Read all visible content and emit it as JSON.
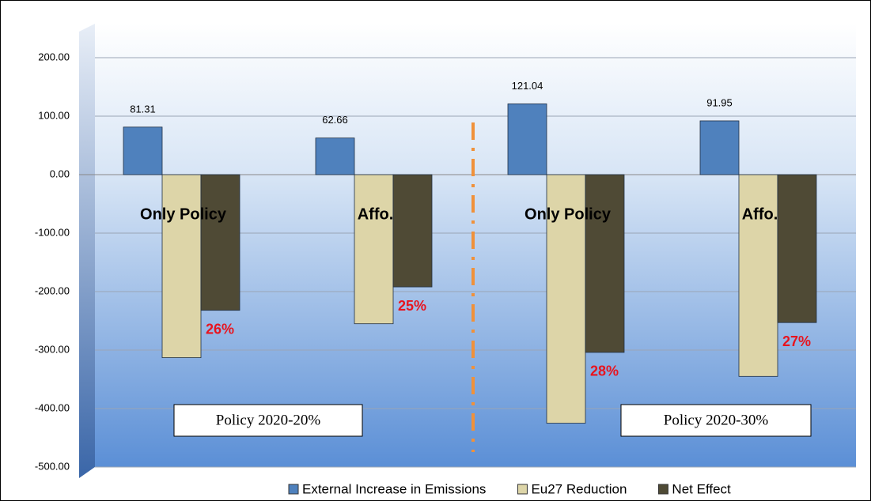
{
  "chart_data": {
    "type": "bar",
    "categories": [
      "Only Policy",
      "Affo.",
      "Only Policy",
      "Affo."
    ],
    "series": [
      {
        "name": "External Increase in Emissions",
        "color": "#4f81bd",
        "values": [
          81.31,
          62.66,
          121.04,
          91.95
        ]
      },
      {
        "name": "Eu27 Reduction",
        "color": "#ddd5a8",
        "values": [
          -313,
          -255,
          -425,
          -345
        ]
      },
      {
        "name": "Net Effect",
        "color": "#4f4a35",
        "values": [
          -232,
          -192,
          -304,
          -253
        ]
      }
    ],
    "annotations": [
      "26%",
      "25%",
      "28%",
      "27%"
    ],
    "group_labels": [
      "Policy 2020-20%",
      "Policy 2020-30%"
    ],
    "ylim": [
      -500,
      200
    ],
    "yticks": [
      {
        "value": -500,
        "label": "-500.00"
      },
      {
        "value": -400,
        "label": "-400.00"
      },
      {
        "value": -300,
        "label": "-300.00"
      },
      {
        "value": -200,
        "label": "-200.00"
      },
      {
        "value": -100,
        "label": "-100.00"
      },
      {
        "value": 0,
        "label": "0.00"
      },
      {
        "value": 100,
        "label": "100.00"
      },
      {
        "value": 200,
        "label": "200.00"
      }
    ],
    "grid": true
  }
}
